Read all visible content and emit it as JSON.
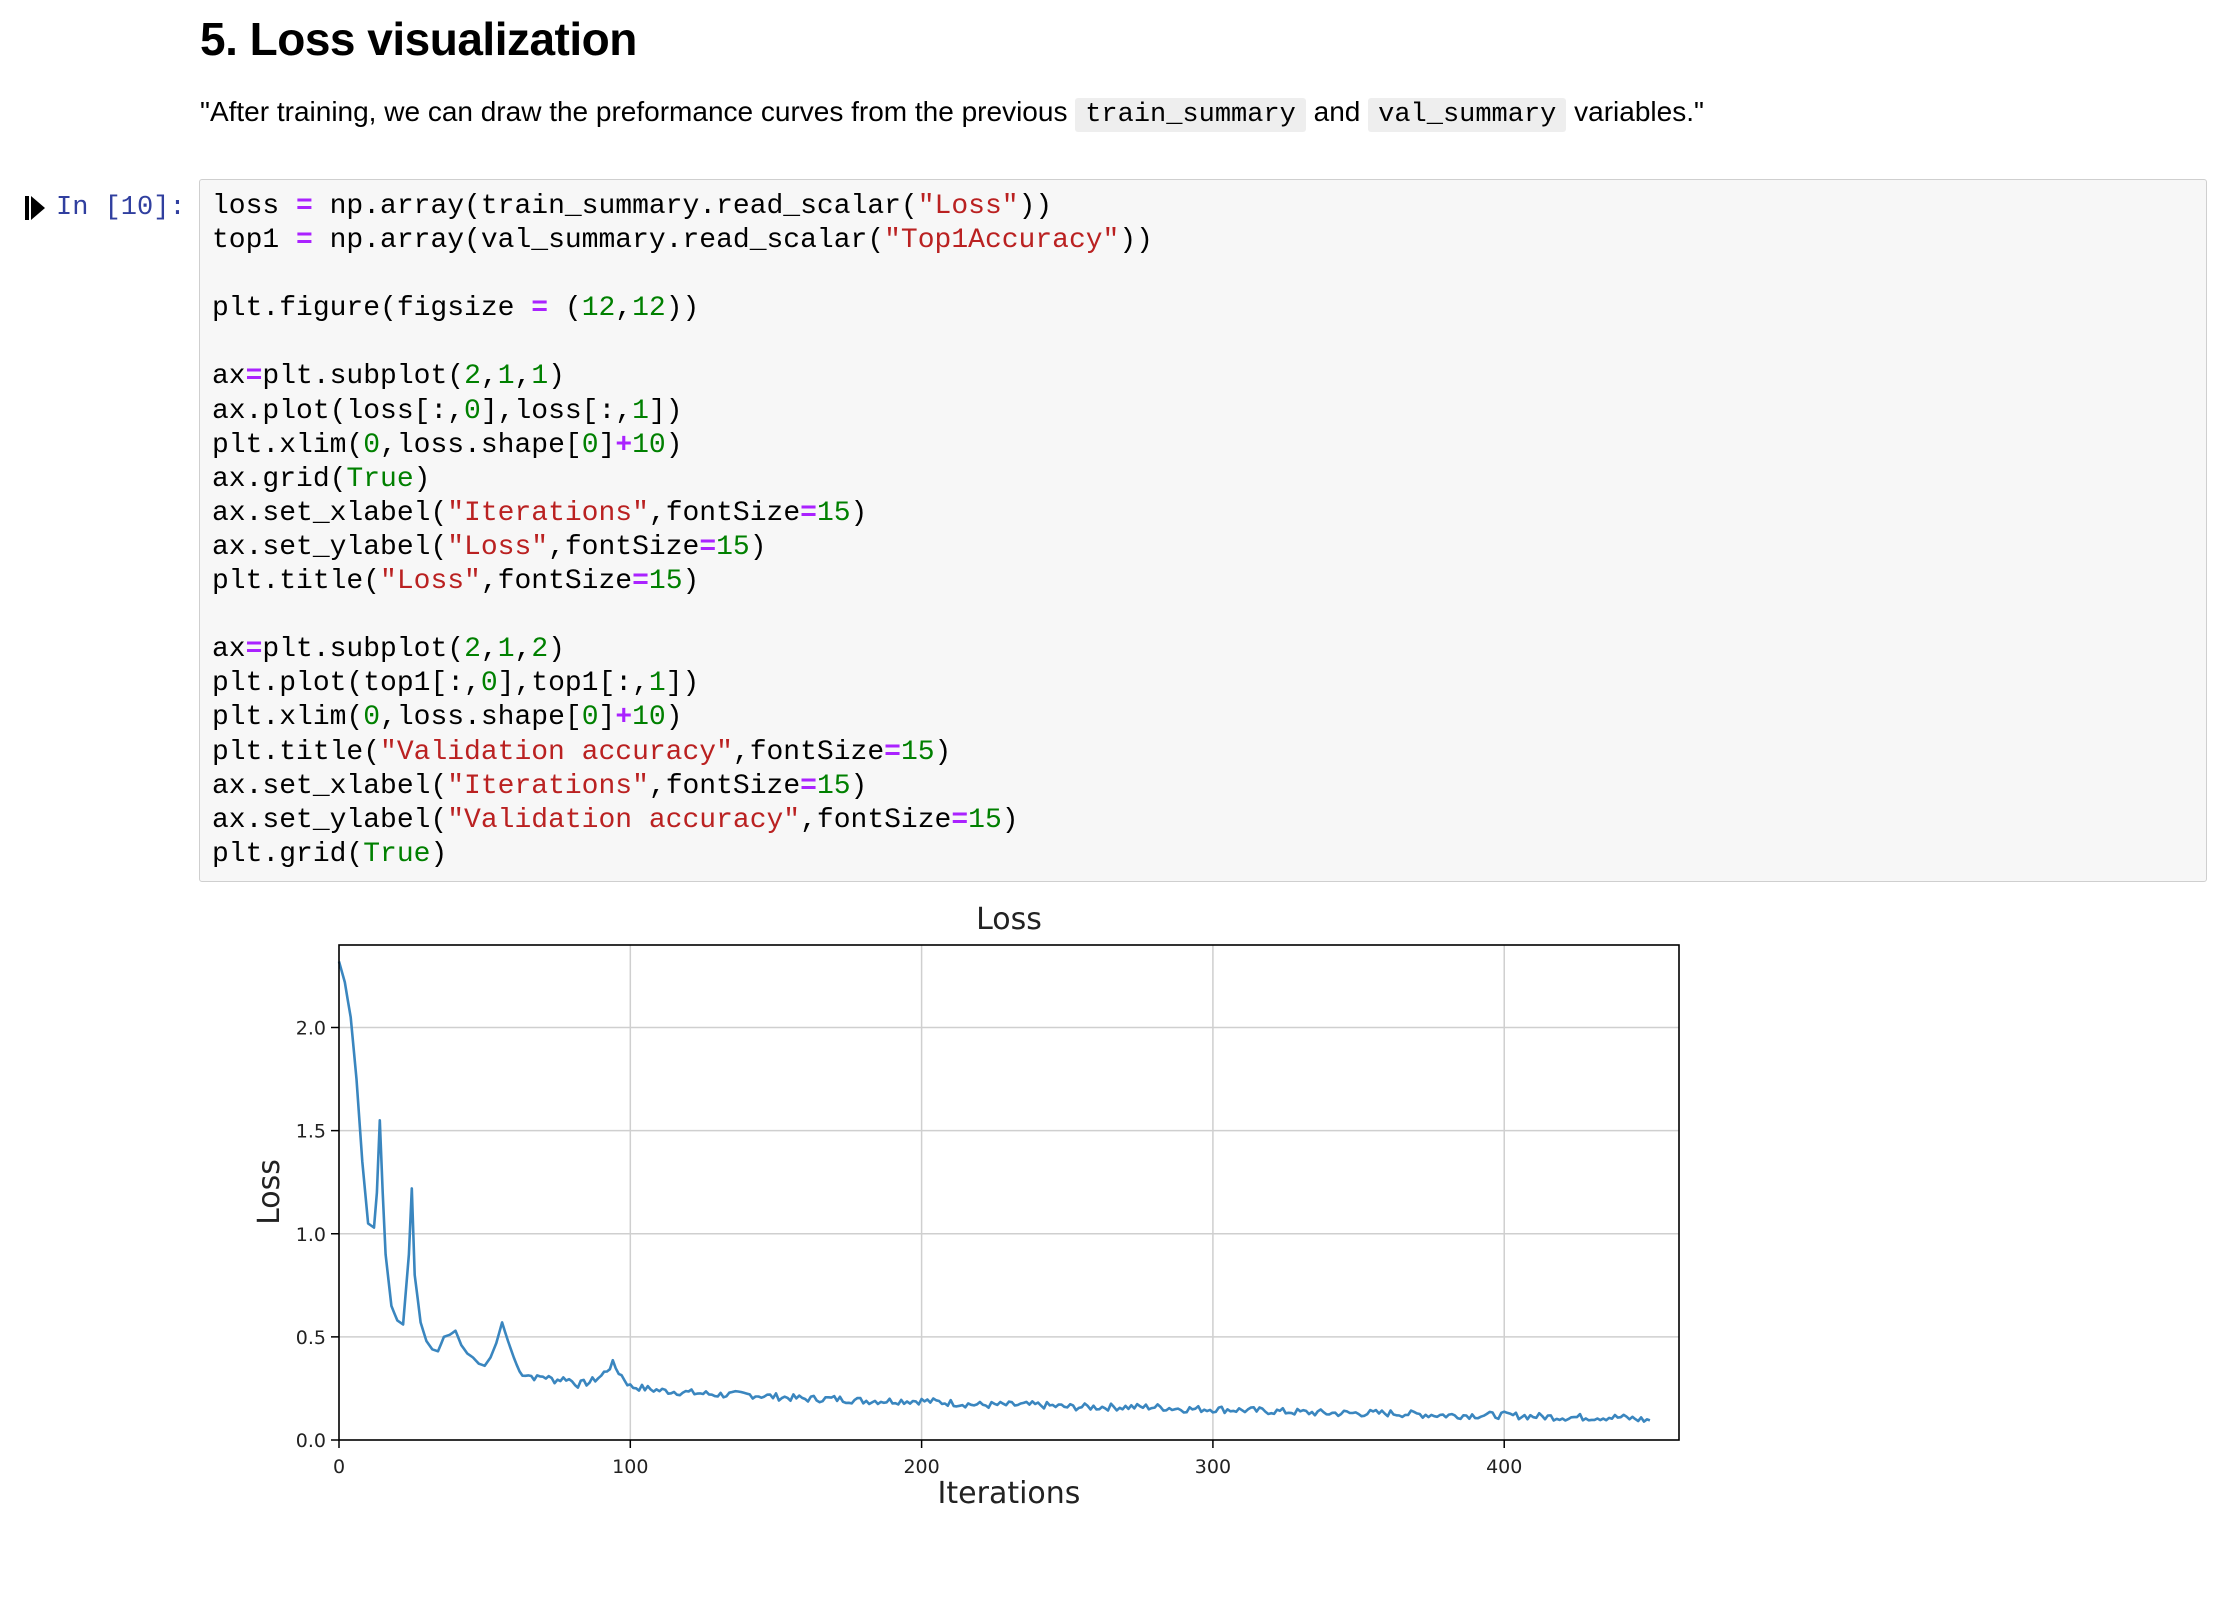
{
  "section": {
    "title": "5. Loss visualization",
    "text_before": "\"After training, we can draw the preformance curves from the previous ",
    "code_1": "train_summary",
    "text_middle": " and ",
    "code_2": "val_summary",
    "text_after": " variables.\""
  },
  "cell": {
    "prompt": "In [10]:",
    "code_lines": [
      "loss = np.array(train_summary.read_scalar(\"Loss\"))",
      "top1 = np.array(val_summary.read_scalar(\"Top1Accuracy\"))",
      "",
      "plt.figure(figsize = (12,12))",
      "",
      "ax=plt.subplot(2,1,1)",
      "ax.plot(loss[:,0],loss[:,1])",
      "plt.xlim(0,loss.shape[0]+10)",
      "ax.grid(True)",
      "ax.set_xlabel(\"Iterations\",fontSize=15)",
      "ax.set_ylabel(\"Loss\",fontSize=15)",
      "plt.title(\"Loss\",fontSize=15)",
      "",
      "ax=plt.subplot(2,1,2)",
      "plt.plot(top1[:,0],top1[:,1])",
      "plt.xlim(0,loss.shape[0]+10)",
      "plt.title(\"Validation accuracy\",fontSize=15)",
      "ax.set_xlabel(\"Iterations\",fontSize=15)",
      "ax.set_ylabel(\"Validation accuracy\",fontSize=15)",
      "plt.grid(True)"
    ]
  },
  "chart_data": {
    "type": "line",
    "title": "Loss",
    "xlabel": "Iterations",
    "ylabel": "Loss",
    "xlim": [
      0,
      460
    ],
    "ylim": [
      0,
      2.4
    ],
    "xticks": [
      "0",
      "100",
      "200",
      "300",
      "400"
    ],
    "yticks": [
      "0.0",
      "0.5",
      "1.0",
      "1.5",
      "2.0"
    ],
    "grid": true,
    "line_color": "#3a86bf",
    "series": [
      {
        "name": "Loss",
        "x": [
          0,
          2,
          4,
          6,
          8,
          10,
          12,
          13,
          14,
          15,
          16,
          18,
          20,
          22,
          24,
          25,
          26,
          28,
          30,
          32,
          34,
          36,
          38,
          40,
          42,
          44,
          46,
          48,
          50,
          52,
          54,
          56,
          58,
          60,
          62,
          64,
          66,
          68,
          70,
          74,
          78,
          82,
          86,
          90,
          94,
          96,
          100,
          110,
          120,
          130,
          140,
          150,
          160,
          170,
          180,
          190,
          200,
          210,
          220,
          230,
          240,
          250,
          260,
          270,
          280,
          290,
          300,
          320,
          340,
          360,
          380,
          400,
          420,
          440,
          450
        ],
        "y": [
          2.32,
          2.22,
          2.05,
          1.75,
          1.35,
          1.05,
          1.03,
          1.2,
          1.55,
          1.2,
          0.9,
          0.65,
          0.58,
          0.56,
          0.9,
          1.22,
          0.8,
          0.57,
          0.48,
          0.44,
          0.43,
          0.5,
          0.51,
          0.53,
          0.46,
          0.42,
          0.4,
          0.37,
          0.36,
          0.4,
          0.47,
          0.57,
          0.48,
          0.4,
          0.33,
          0.32,
          0.31,
          0.3,
          0.31,
          0.29,
          0.3,
          0.27,
          0.28,
          0.31,
          0.37,
          0.33,
          0.26,
          0.24,
          0.23,
          0.22,
          0.22,
          0.21,
          0.2,
          0.2,
          0.19,
          0.19,
          0.19,
          0.18,
          0.17,
          0.17,
          0.17,
          0.16,
          0.16,
          0.16,
          0.16,
          0.15,
          0.15,
          0.14,
          0.13,
          0.13,
          0.12,
          0.12,
          0.11,
          0.11,
          0.095
        ]
      }
    ]
  }
}
